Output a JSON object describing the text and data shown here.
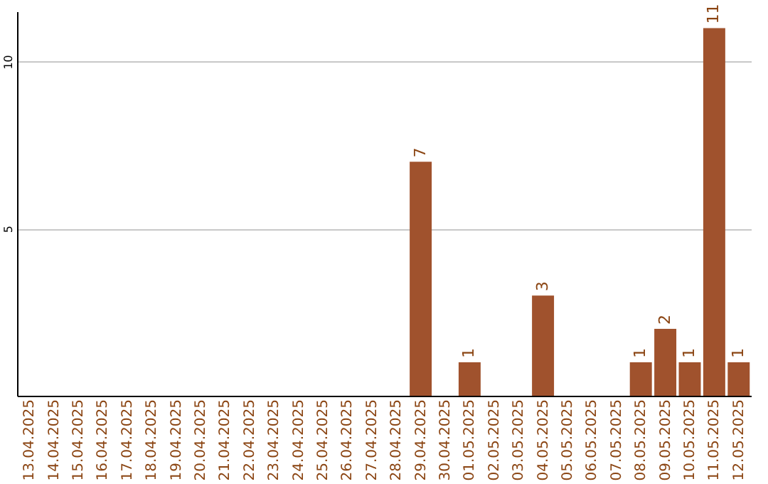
{
  "chart_data": {
    "type": "bar",
    "categories": [
      "13.04.2025",
      "14.04.2025",
      "15.04.2025",
      "16.04.2025",
      "17.04.2025",
      "18.04.2025",
      "19.04.2025",
      "20.04.2025",
      "21.04.2025",
      "22.04.2025",
      "23.04.2025",
      "24.04.2025",
      "25.04.2025",
      "26.04.2025",
      "27.04.2025",
      "28.04.2025",
      "29.04.2025",
      "30.04.2025",
      "01.05.2025",
      "02.05.2025",
      "03.05.2025",
      "04.05.2025",
      "05.05.2025",
      "06.05.2025",
      "07.05.2025",
      "08.05.2025",
      "09.05.2025",
      "10.05.2025",
      "11.05.2025",
      "12.05.2025"
    ],
    "values": [
      0,
      0,
      0,
      0,
      0,
      0,
      0,
      0,
      0,
      0,
      0,
      0,
      0,
      0,
      0,
      0,
      7,
      0,
      1,
      0,
      0,
      3,
      0,
      0,
      0,
      1,
      2,
      1,
      11,
      1
    ],
    "value_labels": [
      null,
      null,
      null,
      null,
      null,
      null,
      null,
      null,
      null,
      null,
      null,
      null,
      null,
      null,
      null,
      null,
      "7",
      null,
      "1",
      null,
      null,
      "3",
      null,
      null,
      null,
      "1",
      "2",
      "1",
      "11",
      "1"
    ],
    "color": "#a0522d",
    "ylim": [
      0,
      11.5
    ],
    "yticks": [
      5,
      10
    ],
    "grid": "y"
  }
}
